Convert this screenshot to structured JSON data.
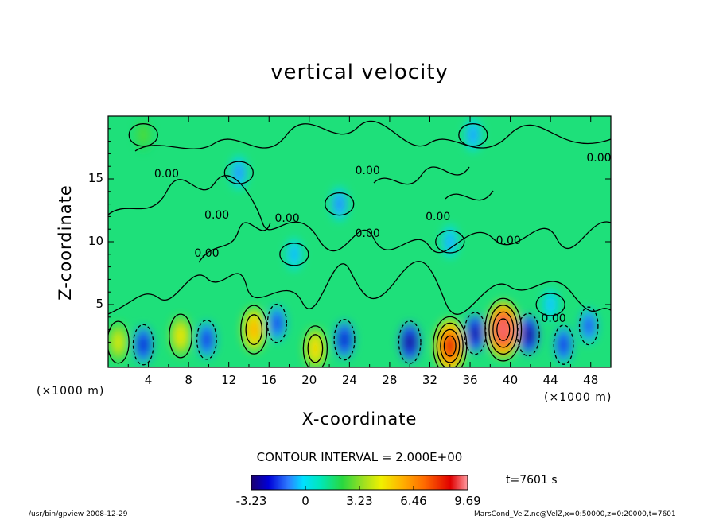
{
  "chart_data": {
    "type": "heatmap",
    "title": "vertical velocity",
    "xlabel": "X-coordinate",
    "ylabel": "Z-coordinate",
    "x_unit": "(×1000 m)",
    "y_unit": "(×1000 m)",
    "xlim": [
      0,
      50
    ],
    "ylim": [
      0,
      20
    ],
    "x_ticks": [
      "4",
      "8",
      "12",
      "16",
      "20",
      "24",
      "28",
      "32",
      "36",
      "40",
      "44",
      "48"
    ],
    "y_ticks": [
      "5",
      "10",
      "15"
    ],
    "contour_interval_label": "CONTOUR INTERVAL = 2.000E+00",
    "contour_labels": [
      "0.00",
      "0.00",
      "0.00",
      "0.00",
      "0.00",
      "0.00",
      "0.00",
      "0.00",
      "0.00",
      "0.00"
    ],
    "colorbar": {
      "min": -3.23,
      "max": 9.69,
      "tick_labels": [
        "-3.23",
        "0",
        "3.23",
        "6.46",
        "9.69"
      ]
    },
    "time_label": "t=7601 s",
    "cells": [
      {
        "x": 1.0,
        "z": 2.0,
        "w": 3.0
      },
      {
        "x": 3.5,
        "z": 1.8,
        "w": -2.5
      },
      {
        "x": 7.2,
        "z": 2.5,
        "w": 3.5
      },
      {
        "x": 9.8,
        "z": 2.2,
        "w": -2.2
      },
      {
        "x": 14.5,
        "z": 3.0,
        "w": 5.0
      },
      {
        "x": 16.8,
        "z": 3.5,
        "w": -2.0
      },
      {
        "x": 20.6,
        "z": 1.5,
        "w": 4.0
      },
      {
        "x": 23.5,
        "z": 2.2,
        "w": -2.6
      },
      {
        "x": 30.0,
        "z": 2.0,
        "w": -3.2
      },
      {
        "x": 34.0,
        "z": 1.7,
        "w": 8.0
      },
      {
        "x": 36.5,
        "z": 2.7,
        "w": -3.0
      },
      {
        "x": 39.3,
        "z": 3.0,
        "w": 9.2
      },
      {
        "x": 41.8,
        "z": 2.6,
        "w": -3.2
      },
      {
        "x": 45.3,
        "z": 1.8,
        "w": -2.2
      },
      {
        "x": 47.8,
        "z": 3.3,
        "w": -1.8
      },
      {
        "x": 3.5,
        "z": 18.5,
        "w": 1.3
      },
      {
        "x": 13.0,
        "z": 15.5,
        "w": -1.2
      },
      {
        "x": 23.0,
        "z": 13.0,
        "w": -1.3
      },
      {
        "x": 36.3,
        "z": 18.5,
        "w": -1.1
      },
      {
        "x": 34.0,
        "z": 10.0,
        "w": -1.0
      },
      {
        "x": 18.5,
        "z": 9.0,
        "w": -0.9
      },
      {
        "x": 44.0,
        "z": 5.0,
        "w": -0.8
      }
    ]
  },
  "footer": {
    "left": "/usr/bin/gpview   2008-12-29",
    "right": "MarsCond_VelZ.nc@VelZ,x=0:50000,z=0:20000,t=7601"
  }
}
